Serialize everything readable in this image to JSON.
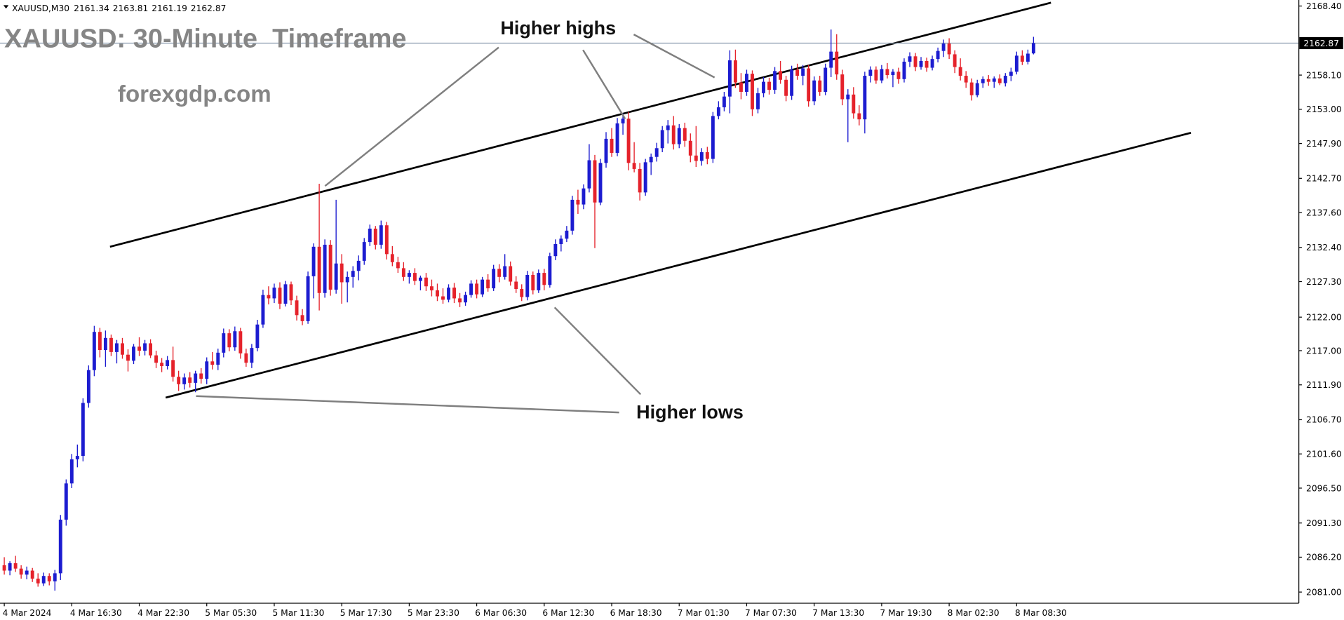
{
  "chart_data": {
    "type": "candlestick",
    "symbol": "XAUUSD,M30",
    "title": "XAUUSD: 30-Minute  Timeframe",
    "watermark": "forexgdp.com",
    "annotations": [
      "Higher highs",
      "Higher lows"
    ],
    "up_color": "#1c1cd0",
    "down_color": "#e5222b",
    "price_line_color": "#8a9cae",
    "categories": [
      "4 Mar 2024",
      null,
      null,
      null,
      null,
      null,
      null,
      null,
      null,
      null,
      null,
      null,
      "4 Mar 16:30",
      null,
      null,
      null,
      null,
      null,
      null,
      null,
      null,
      null,
      null,
      null,
      "4 Mar 22:30",
      null,
      null,
      null,
      null,
      null,
      null,
      null,
      null,
      null,
      null,
      null,
      "5 Mar 05:30",
      null,
      null,
      null,
      null,
      null,
      null,
      null,
      null,
      null,
      null,
      null,
      "5 Mar 11:30",
      null,
      null,
      null,
      null,
      null,
      null,
      null,
      null,
      null,
      null,
      null,
      "5 Mar 17:30",
      null,
      null,
      null,
      null,
      null,
      null,
      null,
      null,
      null,
      null,
      null,
      "5 Mar 23:30",
      null,
      null,
      null,
      null,
      null,
      null,
      null,
      null,
      null,
      null,
      null,
      "6 Mar 06:30",
      null,
      null,
      null,
      null,
      null,
      null,
      null,
      null,
      null,
      null,
      null,
      "6 Mar 12:30",
      null,
      null,
      null,
      null,
      null,
      null,
      null,
      null,
      null,
      null,
      null,
      "6 Mar 18:30",
      null,
      null,
      null,
      null,
      null,
      null,
      null,
      null,
      null,
      null,
      null,
      "7 Mar 01:30",
      null,
      null,
      null,
      null,
      null,
      null,
      null,
      null,
      null,
      null,
      null,
      "7 Mar 07:30",
      null,
      null,
      null,
      null,
      null,
      null,
      null,
      null,
      null,
      null,
      null,
      "7 Mar 13:30",
      null,
      null,
      null,
      null,
      null,
      null,
      null,
      null,
      null,
      null,
      null,
      "7 Mar 19:30",
      null,
      null,
      null,
      null,
      null,
      null,
      null,
      null,
      null,
      null,
      null,
      "8 Mar 02:30",
      null,
      null,
      null,
      null,
      null,
      null,
      null,
      null,
      null,
      null,
      null,
      "8 Mar 08:30",
      null,
      null,
      null
    ],
    "ohlc": [
      [
        2085.0,
        2086.2,
        2083.6,
        2084.2
      ],
      [
        2084.2,
        2085.6,
        2083.5,
        2085.3
      ],
      [
        2085.3,
        2086.4,
        2084.0,
        2084.5
      ],
      [
        2084.5,
        2085.0,
        2083.0,
        2083.6
      ],
      [
        2083.6,
        2084.8,
        2082.9,
        2084.2
      ],
      [
        2084.2,
        2084.6,
        2082.5,
        2083.0
      ],
      [
        2083.0,
        2083.8,
        2081.8,
        2082.3
      ],
      [
        2082.3,
        2083.9,
        2081.9,
        2083.4
      ],
      [
        2083.4,
        2083.8,
        2082.0,
        2082.6
      ],
      [
        2082.6,
        2084.3,
        2081.2,
        2083.8
      ],
      [
        2083.8,
        2092.5,
        2082.8,
        2091.8
      ],
      [
        2091.8,
        2097.8,
        2090.9,
        2097.2
      ],
      [
        2097.2,
        2101.6,
        2096.5,
        2100.8
      ],
      [
        2100.8,
        2103.0,
        2099.6,
        2101.3
      ],
      [
        2101.3,
        2109.9,
        2100.5,
        2109.2
      ],
      [
        2109.2,
        2114.8,
        2108.5,
        2114.1
      ],
      [
        2114.1,
        2120.7,
        2113.2,
        2119.8
      ],
      [
        2119.8,
        2120.4,
        2116.0,
        2117.1
      ],
      [
        2117.1,
        2120.0,
        2114.6,
        2118.9
      ],
      [
        2118.9,
        2119.4,
        2116.2,
        2116.8
      ],
      [
        2116.8,
        2118.6,
        2115.1,
        2118.1
      ],
      [
        2118.1,
        2118.9,
        2115.8,
        2116.4
      ],
      [
        2116.4,
        2117.2,
        2113.9,
        2115.5
      ],
      [
        2115.5,
        2118.0,
        2115.0,
        2117.6
      ],
      [
        2117.6,
        2119.0,
        2116.2,
        2117.0
      ],
      [
        2117.0,
        2118.6,
        2116.3,
        2118.1
      ],
      [
        2118.1,
        2118.7,
        2115.9,
        2116.3
      ],
      [
        2116.3,
        2117.0,
        2114.4,
        2115.2
      ],
      [
        2115.2,
        2115.9,
        2113.8,
        2114.7
      ],
      [
        2114.7,
        2116.2,
        2114.2,
        2115.6
      ],
      [
        2115.6,
        2117.6,
        2112.4,
        2113.1
      ],
      [
        2113.1,
        2114.0,
        2111.0,
        2112.0
      ],
      [
        2112.0,
        2113.6,
        2111.2,
        2113.0
      ],
      [
        2113.0,
        2113.8,
        2111.5,
        2112.2
      ],
      [
        2112.2,
        2114.0,
        2110.8,
        2113.6
      ],
      [
        2113.6,
        2114.4,
        2112.1,
        2112.8
      ],
      [
        2112.8,
        2116.0,
        2112.0,
        2115.4
      ],
      [
        2115.4,
        2116.8,
        2114.2,
        2114.9
      ],
      [
        2114.9,
        2117.3,
        2114.1,
        2116.7
      ],
      [
        2116.7,
        2120.3,
        2116.0,
        2119.6
      ],
      [
        2119.6,
        2120.2,
        2116.9,
        2117.5
      ],
      [
        2117.5,
        2120.6,
        2117.0,
        2119.9
      ],
      [
        2119.9,
        2120.4,
        2115.8,
        2116.6
      ],
      [
        2116.6,
        2117.3,
        2114.6,
        2115.2
      ],
      [
        2115.2,
        2118.0,
        2114.4,
        2117.4
      ],
      [
        2117.4,
        2121.6,
        2116.9,
        2120.9
      ],
      [
        2120.9,
        2126.1,
        2120.4,
        2125.3
      ],
      [
        2125.3,
        2126.6,
        2123.9,
        2124.8
      ],
      [
        2124.8,
        2127.0,
        2124.1,
        2126.4
      ],
      [
        2126.4,
        2127.2,
        2123.2,
        2124.0
      ],
      [
        2124.0,
        2127.4,
        2123.6,
        2126.9
      ],
      [
        2126.9,
        2127.3,
        2123.8,
        2124.5
      ],
      [
        2124.5,
        2125.2,
        2121.5,
        2122.3
      ],
      [
        2122.3,
        2123.2,
        2120.8,
        2121.4
      ],
      [
        2121.4,
        2128.8,
        2121.0,
        2128.1
      ],
      [
        2128.1,
        2133.0,
        2124.8,
        2132.5
      ],
      [
        2132.5,
        2141.9,
        2123.0,
        2125.6
      ],
      [
        2125.6,
        2133.6,
        2124.9,
        2132.8
      ],
      [
        2132.8,
        2133.5,
        2125.2,
        2126.1
      ],
      [
        2126.1,
        2139.5,
        2125.5,
        2130.0
      ],
      [
        2130.0,
        2131.4,
        2124.0,
        2127.2
      ],
      [
        2127.2,
        2128.8,
        2124.2,
        2128.0
      ],
      [
        2128.0,
        2129.6,
        2126.4,
        2128.9
      ],
      [
        2128.9,
        2131.2,
        2127.5,
        2130.4
      ],
      [
        2130.4,
        2133.8,
        2129.8,
        2133.2
      ],
      [
        2133.2,
        2135.8,
        2132.6,
        2135.2
      ],
      [
        2135.2,
        2135.6,
        2132.1,
        2132.8
      ],
      [
        2132.8,
        2136.4,
        2132.2,
        2135.7
      ],
      [
        2135.7,
        2136.2,
        2130.6,
        2131.4
      ],
      [
        2131.4,
        2132.6,
        2129.6,
        2130.2
      ],
      [
        2130.2,
        2131.0,
        2128.6,
        2129.3
      ],
      [
        2129.3,
        2130.2,
        2127.4,
        2128.0
      ],
      [
        2128.0,
        2129.0,
        2127.0,
        2128.6
      ],
      [
        2128.6,
        2129.3,
        2126.8,
        2127.4
      ],
      [
        2127.4,
        2128.2,
        2126.0,
        2127.9
      ],
      [
        2127.9,
        2128.6,
        2125.9,
        2126.6
      ],
      [
        2126.6,
        2127.6,
        2125.1,
        2126.0
      ],
      [
        2126.0,
        2127.0,
        2124.4,
        2125.1
      ],
      [
        2125.1,
        2126.3,
        2124.0,
        2124.6
      ],
      [
        2124.6,
        2126.9,
        2124.2,
        2126.4
      ],
      [
        2126.4,
        2127.1,
        2124.1,
        2124.8
      ],
      [
        2124.8,
        2125.6,
        2123.5,
        2124.2
      ],
      [
        2124.2,
        2125.8,
        2123.7,
        2125.3
      ],
      [
        2125.3,
        2127.5,
        2124.9,
        2127.0
      ],
      [
        2127.0,
        2127.6,
        2124.8,
        2125.4
      ],
      [
        2125.4,
        2128.0,
        2125.0,
        2127.6
      ],
      [
        2127.6,
        2128.4,
        2125.8,
        2126.3
      ],
      [
        2126.3,
        2129.8,
        2125.9,
        2129.2
      ],
      [
        2129.2,
        2129.9,
        2127.2,
        2128.0
      ],
      [
        2128.0,
        2131.4,
        2127.6,
        2129.6
      ],
      [
        2129.6,
        2130.3,
        2126.7,
        2127.3
      ],
      [
        2127.3,
        2128.1,
        2125.6,
        2126.2
      ],
      [
        2126.2,
        2126.9,
        2124.4,
        2125.0
      ],
      [
        2125.0,
        2128.9,
        2124.5,
        2128.3
      ],
      [
        2128.3,
        2128.8,
        2125.4,
        2126.0
      ],
      [
        2126.0,
        2129.1,
        2125.6,
        2128.6
      ],
      [
        2128.6,
        2129.2,
        2126.0,
        2126.8
      ],
      [
        2126.8,
        2131.6,
        2126.4,
        2131.1
      ],
      [
        2131.1,
        2133.6,
        2130.5,
        2132.9
      ],
      [
        2132.9,
        2134.2,
        2131.8,
        2133.7
      ],
      [
        2133.7,
        2135.6,
        2133.2,
        2134.9
      ],
      [
        2134.9,
        2140.1,
        2134.3,
        2139.5
      ],
      [
        2139.5,
        2141.0,
        2137.4,
        2138.8
      ],
      [
        2138.8,
        2141.8,
        2138.1,
        2141.2
      ],
      [
        2141.2,
        2147.8,
        2140.6,
        2145.4
      ],
      [
        2145.4,
        2146.2,
        2132.3,
        2139.1
      ],
      [
        2139.1,
        2145.6,
        2138.7,
        2145.0
      ],
      [
        2145.0,
        2149.6,
        2144.3,
        2148.6
      ],
      [
        2148.6,
        2150.2,
        2145.9,
        2146.5
      ],
      [
        2146.5,
        2151.7,
        2146.0,
        2150.9
      ],
      [
        2150.9,
        2152.4,
        2149.2,
        2151.6
      ],
      [
        2151.6,
        2152.6,
        2143.9,
        2145.0
      ],
      [
        2145.0,
        2148.1,
        2143.6,
        2144.1
      ],
      [
        2144.1,
        2145.0,
        2139.4,
        2140.6
      ],
      [
        2140.6,
        2145.6,
        2140.1,
        2145.1
      ],
      [
        2145.1,
        2146.4,
        2143.2,
        2145.9
      ],
      [
        2145.9,
        2148.0,
        2145.2,
        2147.2
      ],
      [
        2147.2,
        2150.5,
        2146.6,
        2149.9
      ],
      [
        2149.9,
        2151.4,
        2147.9,
        2150.6
      ],
      [
        2150.6,
        2152.0,
        2147.0,
        2147.8
      ],
      [
        2147.8,
        2150.8,
        2147.2,
        2150.2
      ],
      [
        2150.2,
        2151.0,
        2147.4,
        2148.3
      ],
      [
        2148.3,
        2149.4,
        2145.1,
        2146.1
      ],
      [
        2146.1,
        2150.5,
        2144.4,
        2145.3
      ],
      [
        2145.3,
        2147.2,
        2144.6,
        2146.6
      ],
      [
        2146.6,
        2147.4,
        2144.8,
        2145.6
      ],
      [
        2145.6,
        2152.6,
        2145.0,
        2152.0
      ],
      [
        2152.0,
        2154.2,
        2151.5,
        2153.3
      ],
      [
        2153.3,
        2155.6,
        2152.7,
        2154.9
      ],
      [
        2154.9,
        2161.8,
        2152.4,
        2160.3
      ],
      [
        2160.3,
        2161.9,
        2156.2,
        2157.0
      ],
      [
        2157.0,
        2158.4,
        2154.5,
        2155.6
      ],
      [
        2155.6,
        2158.9,
        2155.0,
        2158.3
      ],
      [
        2158.3,
        2158.8,
        2152.0,
        2153.0
      ],
      [
        2153.0,
        2156.2,
        2152.4,
        2155.4
      ],
      [
        2155.4,
        2157.8,
        2154.8,
        2157.1
      ],
      [
        2157.1,
        2157.7,
        2155.2,
        2155.9
      ],
      [
        2155.9,
        2159.3,
        2155.3,
        2158.7
      ],
      [
        2158.7,
        2160.2,
        2156.8,
        2157.4
      ],
      [
        2157.4,
        2158.0,
        2154.2,
        2155.0
      ],
      [
        2155.0,
        2159.5,
        2154.4,
        2158.9
      ],
      [
        2158.9,
        2159.8,
        2157.4,
        2158.0
      ],
      [
        2158.0,
        2159.6,
        2156.6,
        2159.1
      ],
      [
        2159.1,
        2159.6,
        2153.4,
        2154.2
      ],
      [
        2154.2,
        2157.9,
        2153.6,
        2157.3
      ],
      [
        2157.3,
        2158.0,
        2155.0,
        2155.6
      ],
      [
        2155.6,
        2159.8,
        2155.1,
        2159.2
      ],
      [
        2159.2,
        2164.9,
        2157.8,
        2161.6
      ],
      [
        2161.6,
        2164.2,
        2157.4,
        2158.2
      ],
      [
        2158.2,
        2158.9,
        2153.6,
        2154.5
      ],
      [
        2154.5,
        2156.0,
        2148.1,
        2155.2
      ],
      [
        2155.2,
        2156.3,
        2151.6,
        2152.4
      ],
      [
        2152.4,
        2153.6,
        2150.6,
        2151.5
      ],
      [
        2151.5,
        2158.6,
        2149.4,
        2158.0
      ],
      [
        2158.0,
        2159.4,
        2157.0,
        2158.9
      ],
      [
        2158.9,
        2159.4,
        2156.8,
        2157.3
      ],
      [
        2157.3,
        2159.6,
        2156.9,
        2159.0
      ],
      [
        2159.0,
        2159.9,
        2157.6,
        2158.1
      ],
      [
        2158.1,
        2159.0,
        2156.3,
        2158.6
      ],
      [
        2158.6,
        2159.2,
        2156.8,
        2157.5
      ],
      [
        2157.5,
        2160.6,
        2157.0,
        2160.1
      ],
      [
        2160.1,
        2161.5,
        2159.3,
        2160.9
      ],
      [
        2160.9,
        2161.4,
        2158.7,
        2159.3
      ],
      [
        2159.3,
        2160.8,
        2158.9,
        2160.2
      ],
      [
        2160.2,
        2160.7,
        2158.6,
        2159.2
      ],
      [
        2159.2,
        2161.0,
        2158.8,
        2160.5
      ],
      [
        2160.5,
        2162.2,
        2160.0,
        2161.7
      ],
      [
        2161.7,
        2163.4,
        2160.8,
        2162.8
      ],
      [
        2162.8,
        2163.6,
        2160.5,
        2161.2
      ],
      [
        2161.2,
        2161.8,
        2158.4,
        2159.3
      ],
      [
        2159.3,
        2160.6,
        2157.3,
        2158.0
      ],
      [
        2158.0,
        2158.7,
        2156.2,
        2157.0
      ],
      [
        2157.0,
        2157.6,
        2154.3,
        2155.1
      ],
      [
        2155.1,
        2157.4,
        2154.8,
        2156.9
      ],
      [
        2156.9,
        2157.9,
        2156.2,
        2157.5
      ],
      [
        2157.5,
        2158.1,
        2156.5,
        2157.1
      ],
      [
        2157.1,
        2157.9,
        2156.2,
        2157.6
      ],
      [
        2157.6,
        2158.2,
        2156.6,
        2156.9
      ],
      [
        2156.9,
        2158.4,
        2156.4,
        2158.0
      ],
      [
        2158.0,
        2159.2,
        2157.2,
        2158.6
      ],
      [
        2158.6,
        2161.6,
        2158.2,
        2161.0
      ],
      [
        2161.0,
        2161.8,
        2159.6,
        2160.1
      ],
      [
        2160.1,
        2161.9,
        2159.7,
        2161.3
      ],
      [
        2161.34,
        2163.81,
        2161.19,
        2162.87
      ]
    ],
    "trendlines": [
      [
        [
          18.8,
          2132.5
        ],
        [
          186.1,
          2168.9
        ]
      ],
      [
        [
          28.7,
          2110.0
        ],
        [
          211.0,
          2149.5
        ]
      ]
    ],
    "xlim": [
      -0.76,
      230.1
    ],
    "ylim": [
      2079.4,
      2169.3
    ],
    "yticks": [
      {
        "value": 2168.4,
        "label": "2168.40"
      },
      {
        "value": 2158.1,
        "label": "2158.10"
      },
      {
        "value": 2153,
        "label": "2153.00"
      },
      {
        "value": 2147.9,
        "label": "2147.90"
      },
      {
        "value": 2142.7,
        "label": "2142.70"
      },
      {
        "value": 2137.6,
        "label": "2137.60"
      },
      {
        "value": 2132.4,
        "label": "2132.40"
      },
      {
        "value": 2127.3,
        "label": "2127.30"
      },
      {
        "value": 2122,
        "label": "2122.00"
      },
      {
        "value": 2117,
        "label": "2117.00"
      },
      {
        "value": 2111.9,
        "label": "2111.90"
      },
      {
        "value": 2106.7,
        "label": "2106.70"
      },
      {
        "value": 2101.6,
        "label": "2101.60"
      },
      {
        "value": 2096.5,
        "label": "2096.50"
      },
      {
        "value": 2091.3,
        "label": "2091.30"
      },
      {
        "value": 2086.2,
        "label": "2086.20"
      },
      {
        "value": 2081,
        "label": "2081.00"
      }
    ],
    "grid": false
  }
}
